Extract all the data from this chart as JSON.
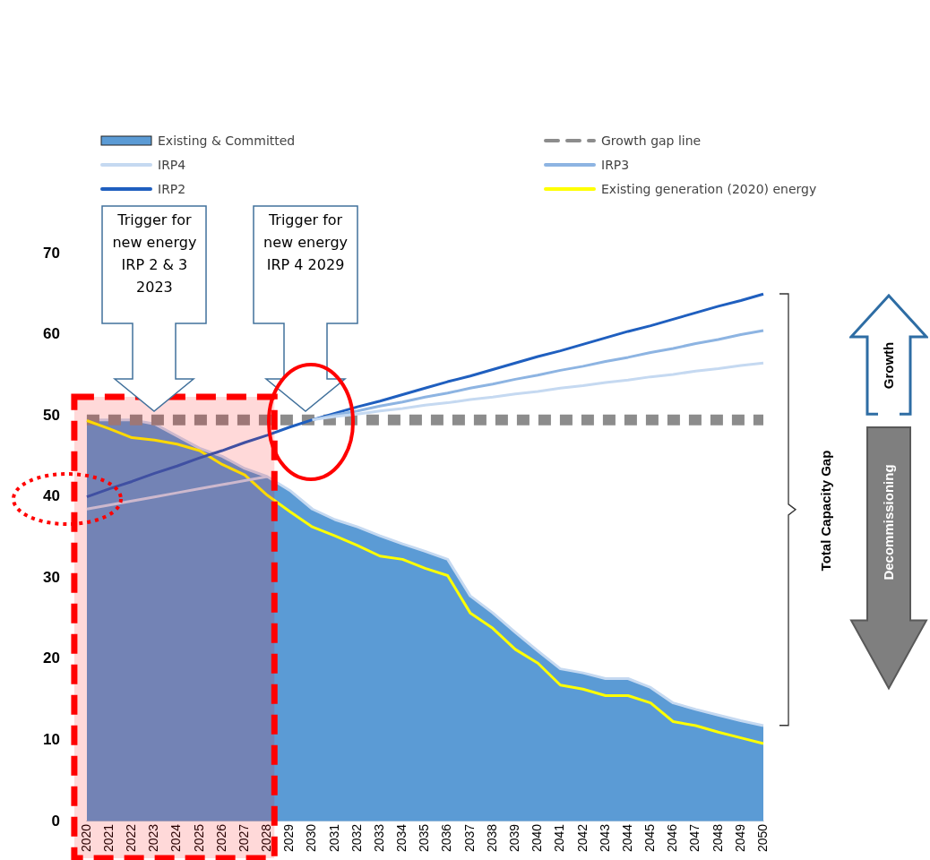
{
  "chart_data": {
    "type": "line",
    "categories": [
      "2020",
      "2021",
      "2022",
      "2023",
      "2024",
      "2025",
      "2026",
      "2027",
      "2028",
      "2029",
      "2030",
      "2031",
      "2032",
      "2033",
      "2034",
      "2035",
      "2036",
      "2037",
      "2038",
      "2039",
      "2040",
      "2041",
      "2042",
      "2043",
      "2044",
      "2045",
      "2046",
      "2047",
      "2048",
      "2049",
      "2050"
    ],
    "series": [
      {
        "name": "Existing & Committed",
        "type": "area",
        "color": "#5b9bd5",
        "values": [
          49.5,
          49.5,
          49.5,
          49,
          47.5,
          46,
          45,
          43.5,
          42.5,
          40.8,
          38.5,
          37.2,
          36.3,
          35.2,
          34.2,
          33.3,
          32.3,
          27.8,
          25.7,
          23.3,
          21,
          18.8,
          18.3,
          17.6,
          17.6,
          16.5,
          14.6,
          13.8,
          13.1,
          12.4,
          11.8
        ]
      },
      {
        "name": "Growth gap line",
        "type": "line",
        "line_style": "dashed",
        "color": "#8c8c8c",
        "values": [
          49.5,
          49.5,
          49.5,
          49.5,
          49.5,
          49.5,
          49.5,
          49.5,
          49.5,
          49.5,
          49.5,
          49.5,
          49.5,
          49.5,
          49.5,
          49.5,
          49.5,
          49.5,
          49.5,
          49.5,
          49.5,
          49.5,
          49.5,
          49.5,
          49.5,
          49.5,
          49.5,
          49.5,
          49.5,
          49.5,
          49.5
        ]
      },
      {
        "name": "IRP4",
        "type": "line",
        "color": "#c5d9f1",
        "values": [
          38.5,
          39,
          39.5,
          40,
          40.5,
          41,
          41.5,
          42,
          42.5,
          null,
          49.5,
          49.9,
          50.2,
          50.6,
          50.9,
          51.3,
          51.6,
          52,
          52.3,
          52.7,
          53,
          53.4,
          53.7,
          54.1,
          54.4,
          54.8,
          55.1,
          55.5,
          55.8,
          56.2,
          56.5
        ]
      },
      {
        "name": "IRP3",
        "type": "line",
        "color": "#8db4e2",
        "values": [
          null,
          null,
          null,
          null,
          null,
          null,
          null,
          null,
          null,
          null,
          49.5,
          50.1,
          50.6,
          51.2,
          51.7,
          52.3,
          52.8,
          53.4,
          53.9,
          54.5,
          55,
          55.6,
          56.1,
          56.7,
          57.2,
          57.8,
          58.3,
          58.9,
          59.4,
          60,
          60.5
        ]
      },
      {
        "name": "IRP2",
        "type": "line",
        "color": "#1f5fbf",
        "values": [
          40,
          41,
          41.9,
          42.9,
          43.8,
          44.8,
          45.7,
          46.7,
          47.6,
          48.6,
          49.5,
          50.3,
          51.1,
          51.8,
          52.6,
          53.4,
          54.2,
          54.9,
          55.7,
          56.5,
          57.3,
          58,
          58.8,
          59.6,
          60.4,
          61.1,
          61.9,
          62.7,
          63.5,
          64.2,
          65
        ]
      },
      {
        "name": "Existing generation (2020) energy",
        "type": "line",
        "color": "#ffff00",
        "values": [
          49.4,
          48.4,
          47.3,
          47,
          46.5,
          45.7,
          44,
          42.7,
          40.2,
          38.2,
          36.3,
          35.2,
          34,
          32.7,
          32.3,
          31.2,
          30.3,
          25.7,
          23.8,
          21.2,
          19.5,
          16.8,
          16.3,
          15.5,
          15.5,
          14.6,
          12.3,
          11.8,
          11,
          10.3,
          9.6
        ]
      }
    ],
    "ylim": [
      0,
      70
    ],
    "yticks": [
      0,
      10,
      20,
      30,
      40,
      50,
      60,
      70
    ],
    "grid": false,
    "legend": "top",
    "marker": "none",
    "bands": [
      {
        "axis": "x",
        "from": "2020",
        "to": "2028",
        "color": "#ff0000"
      }
    ],
    "annotations": [
      "Trigger for new energy IRP 2 & 3 2023",
      "Trigger for new energy IRP 4 2029",
      "Total Capacity Gap",
      "Growth",
      "Decommissioning"
    ]
  }
}
